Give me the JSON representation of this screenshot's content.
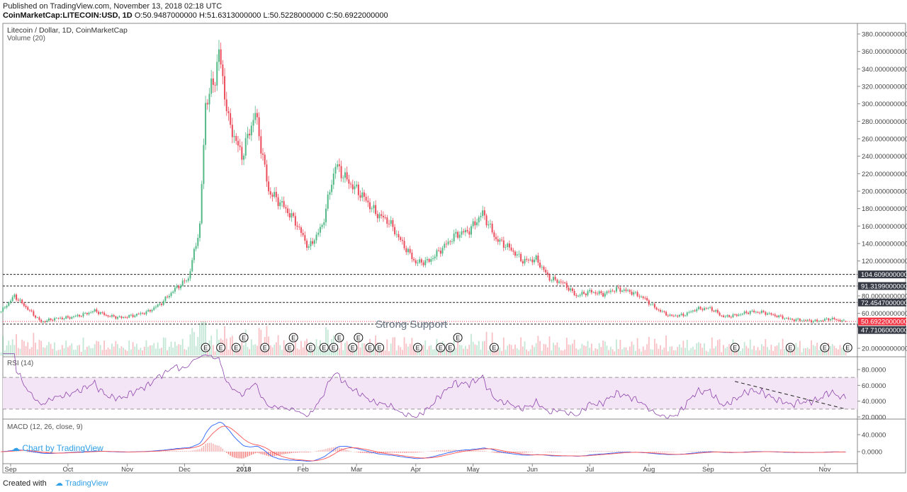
{
  "header": {
    "published": "Published on TradingView.com, November 13, 2018 02:18 UTC",
    "symbol": "CoinMarketCap:LITECOIN:USD, 1D",
    "ohlc": "O:50.9487000000 H:51.6313000000 L:50.5228000000 C:50.6922000000"
  },
  "panes": {
    "main_title": "Litecoin / Dollar, 1D, CoinMarketCap",
    "volume_title": "Volume (20)",
    "rsi_title": "RSI (14)",
    "macd_title": "MACD (12, 26, close, 9)"
  },
  "annotation": "Strong Support",
  "watermark": "Chart by TradingView",
  "footer": {
    "created": "Created with",
    "brand": "TradingView"
  },
  "colors": {
    "up": "#53b987",
    "down": "#eb4d5c",
    "rsi": "#8e44ad",
    "rsi_band": "#f3e5f5",
    "macd": "#2962ff",
    "signal": "#ff5252",
    "last_price": "#f23645",
    "level_tag": "#363a45"
  },
  "chart_data": {
    "type": "candlestick",
    "interval": "1D",
    "price_axis": {
      "min": 20,
      "max": 380,
      "step": 20,
      "ticks": [
        "380.0000000000",
        "360.0000000000",
        "340.0000000000",
        "320.0000000000",
        "300.0000000000",
        "280.0000000000",
        "260.0000000000",
        "240.0000000000",
        "220.0000000000",
        "200.0000000000",
        "180.0000000000",
        "160.0000000000",
        "140.0000000000",
        "120.0000000000",
        "80.0000000000",
        "60.0000000000",
        "20.0000000000"
      ]
    },
    "time_axis": [
      "Sep",
      "Oct",
      "Nov",
      "Dec",
      "2018",
      "Feb",
      "Mar",
      "Apr",
      "May",
      "Jun",
      "Jul",
      "Aug",
      "Sep",
      "Oct",
      "Nov"
    ],
    "approx_closes": [
      [
        "2017-08-27",
        62
      ],
      [
        "2017-09-03",
        80
      ],
      [
        "2017-09-10",
        65
      ],
      [
        "2017-09-17",
        50
      ],
      [
        "2017-09-24",
        54
      ],
      [
        "2017-10-01",
        55
      ],
      [
        "2017-10-08",
        58
      ],
      [
        "2017-10-15",
        63
      ],
      [
        "2017-10-22",
        57
      ],
      [
        "2017-10-29",
        55
      ],
      [
        "2017-11-05",
        58
      ],
      [
        "2017-11-12",
        62
      ],
      [
        "2017-11-19",
        72
      ],
      [
        "2017-11-26",
        88
      ],
      [
        "2017-12-03",
        100
      ],
      [
        "2017-12-09",
        160
      ],
      [
        "2017-12-12",
        300
      ],
      [
        "2017-12-17",
        330
      ],
      [
        "2017-12-19",
        360
      ],
      [
        "2017-12-24",
        280
      ],
      [
        "2017-12-31",
        240
      ],
      [
        "2018-01-07",
        290
      ],
      [
        "2018-01-14",
        200
      ],
      [
        "2018-01-21",
        185
      ],
      [
        "2018-01-28",
        165
      ],
      [
        "2018-02-04",
        135
      ],
      [
        "2018-02-11",
        160
      ],
      [
        "2018-02-18",
        230
      ],
      [
        "2018-02-25",
        210
      ],
      [
        "2018-03-04",
        195
      ],
      [
        "2018-03-11",
        175
      ],
      [
        "2018-03-18",
        165
      ],
      [
        "2018-03-25",
        140
      ],
      [
        "2018-04-01",
        118
      ],
      [
        "2018-04-08",
        120
      ],
      [
        "2018-04-15",
        135
      ],
      [
        "2018-04-22",
        150
      ],
      [
        "2018-04-29",
        155
      ],
      [
        "2018-05-06",
        175
      ],
      [
        "2018-05-13",
        145
      ],
      [
        "2018-05-20",
        135
      ],
      [
        "2018-05-27",
        120
      ],
      [
        "2018-06-03",
        122
      ],
      [
        "2018-06-10",
        100
      ],
      [
        "2018-06-17",
        95
      ],
      [
        "2018-06-24",
        80
      ],
      [
        "2018-07-01",
        85
      ],
      [
        "2018-07-08",
        82
      ],
      [
        "2018-07-15",
        88
      ],
      [
        "2018-07-22",
        85
      ],
      [
        "2018-07-29",
        78
      ],
      [
        "2018-08-05",
        65
      ],
      [
        "2018-08-12",
        57
      ],
      [
        "2018-08-19",
        58
      ],
      [
        "2018-08-26",
        65
      ],
      [
        "2018-09-02",
        66
      ],
      [
        "2018-09-09",
        56
      ],
      [
        "2018-09-16",
        58
      ],
      [
        "2018-09-23",
        62
      ],
      [
        "2018-09-30",
        61
      ],
      [
        "2018-10-07",
        57
      ],
      [
        "2018-10-14",
        53
      ],
      [
        "2018-10-21",
        52
      ],
      [
        "2018-10-28",
        51
      ],
      [
        "2018-11-04",
        54
      ],
      [
        "2018-11-12",
        50.6922
      ]
    ],
    "last": {
      "open": 50.9487,
      "high": 51.6313,
      "low": 50.5228,
      "close": 50.6922,
      "label": "50.6922000000"
    },
    "levels": [
      {
        "value": 104.609,
        "label": "104.6090000000"
      },
      {
        "value": 91.3199,
        "label": "91.3199000000"
      },
      {
        "value": 72.4547,
        "label": "72.4547000000"
      },
      {
        "value": 47.7106,
        "label": "47.7106000000"
      }
    ],
    "events": {
      "glyph": "E",
      "dates": [
        "2017-12-12",
        "2017-12-20",
        "2017-12-28",
        "2018-01-01",
        "2018-01-12",
        "2018-01-25",
        "2018-01-27",
        "2018-02-05",
        "2018-02-12",
        "2018-02-17",
        "2018-02-20",
        "2018-02-27",
        "2018-03-02",
        "2018-03-08",
        "2018-03-13",
        "2018-04-02",
        "2018-04-14",
        "2018-04-19",
        "2018-04-23",
        "2018-05-12",
        "2018-09-15",
        "2018-10-14",
        "2018-11-01",
        "2018-11-13"
      ]
    },
    "rsi": {
      "period": 14,
      "upper": 70,
      "lower": 30,
      "ticks": [
        "80.0000",
        "60.0000",
        "40.0000",
        "20.0000"
      ],
      "trendline": [
        [
          "2018-09-15",
          65
        ],
        [
          "2018-11-12",
          30
        ]
      ]
    },
    "macd": {
      "fast": 12,
      "slow": 26,
      "signal": 9,
      "ticks": [
        "40.0000",
        "0.0000"
      ]
    }
  }
}
